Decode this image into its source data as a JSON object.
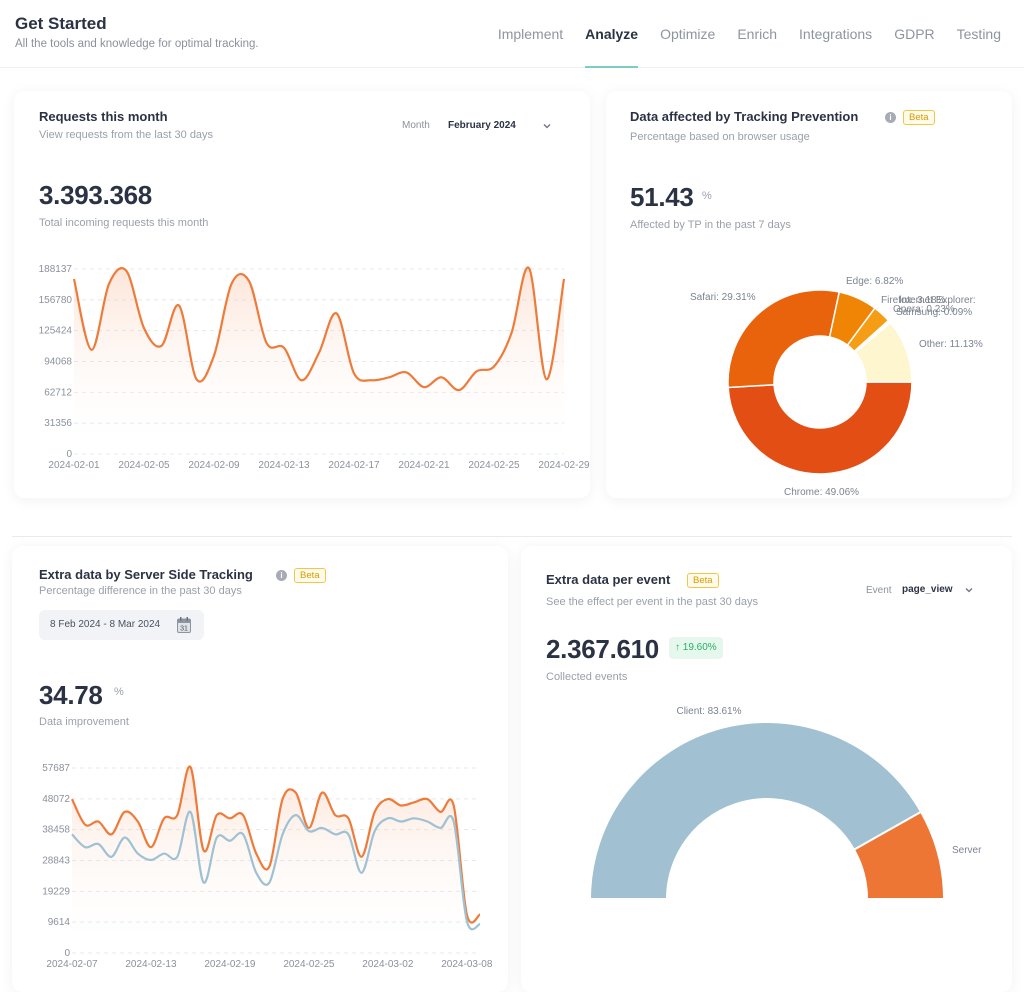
{
  "header": {
    "title": "Get Started",
    "subtitle": "All the tools and knowledge for optimal tracking.",
    "tabs": [
      {
        "label": "Implement",
        "active": false
      },
      {
        "label": "Analyze",
        "active": true
      },
      {
        "label": "Optimize",
        "active": false
      },
      {
        "label": "Enrich",
        "active": false
      },
      {
        "label": "Integrations",
        "active": false
      },
      {
        "label": "GDPR",
        "active": false
      },
      {
        "label": "Testing",
        "active": false
      }
    ]
  },
  "colors": {
    "accent_tab": "#7ccdc8",
    "orange_line": "#ee7b3a",
    "blue_line": "#9ec1d3",
    "chrome": "#e34e14",
    "safari": "#e8630c",
    "edge": "#f08405",
    "firefox": "#f59d15",
    "other": "#fdf6cf",
    "client": "#a1c1d2",
    "server": "#ee7634"
  },
  "requests": {
    "title": "Requests this month",
    "subtitle": "View requests from the last 30 days",
    "select_label": "Month",
    "select_value": "February 2024",
    "total": "3.393.368",
    "total_label": "Total incoming requests this month"
  },
  "tracking_prevention": {
    "title": "Data affected by Tracking Prevention",
    "beta": "Beta",
    "subtitle": "Percentage based on browser usage",
    "value": "51.43",
    "unit": "%",
    "value_label": "Affected by TP in the past 7 days"
  },
  "server_side": {
    "title": "Extra data by Server Side Tracking",
    "beta": "Beta",
    "subtitle": "Percentage difference in the past 30 days",
    "date_range": "8 Feb 2024 - 8 Mar 2024",
    "calendar_day": "31",
    "value": "34.78",
    "unit": "%",
    "value_label": "Data improvement"
  },
  "per_event": {
    "title": "Extra data per event",
    "beta": "Beta",
    "subtitle": "See the effect per event in the past 30 days",
    "select_label": "Event",
    "select_value": "page_view",
    "total": "2.367.610",
    "delta": "19.60%",
    "total_label": "Collected events"
  },
  "chart_data": [
    {
      "type": "area",
      "title": "",
      "yticks": [
        0,
        31356,
        62712,
        94068,
        125424,
        156780,
        188137
      ],
      "ylim": [
        0,
        188137
      ],
      "xticks": [
        "2024-02-01",
        "2024-02-05",
        "2024-02-09",
        "2024-02-13",
        "2024-02-17",
        "2024-02-21",
        "2024-02-25",
        "2024-02-29"
      ],
      "grid": true,
      "x": [
        "2024-02-01",
        "2024-02-02",
        "2024-02-03",
        "2024-02-04",
        "2024-02-05",
        "2024-02-06",
        "2024-02-07",
        "2024-02-08",
        "2024-02-09",
        "2024-02-10",
        "2024-02-11",
        "2024-02-12",
        "2024-02-13",
        "2024-02-14",
        "2024-02-15",
        "2024-02-16",
        "2024-02-17",
        "2024-02-18",
        "2024-02-19",
        "2024-02-20",
        "2024-02-21",
        "2024-02-22",
        "2024-02-23",
        "2024-02-24",
        "2024-02-25",
        "2024-02-26",
        "2024-02-27",
        "2024-02-28",
        "2024-02-29"
      ],
      "series": [
        {
          "values": [
            178000,
            106000,
            173000,
            186000,
            128000,
            110000,
            151000,
            76000,
            100000,
            173000,
            176000,
            113000,
            108000,
            75000,
            103000,
            143000,
            82000,
            75000,
            78000,
            83000,
            68000,
            78000,
            65000,
            84000,
            89000,
            123000,
            189000,
            76000,
            178000
          ]
        }
      ]
    },
    {
      "type": "pie",
      "title": "",
      "style": "donut",
      "slices": [
        {
          "label": "Chrome",
          "value": 49.06
        },
        {
          "label": "Safari",
          "value": 29.31
        },
        {
          "label": "Edge",
          "value": 6.82
        },
        {
          "label": "Firefox",
          "value": 3.18
        },
        {
          "label": "Internet Explorer",
          "value": 0.2
        },
        {
          "label": "Opera",
          "value": 0.23
        },
        {
          "label": "Samsung",
          "value": 0.09
        },
        {
          "label": "Other",
          "value": 11.13
        }
      ],
      "labels_shown": [
        "Chrome: 49.06%",
        "Safari: 29.31%",
        "Edge: 6.82%",
        "Firefox: 3.18%",
        "Internet Explorer: ",
        "Opera: 0.23%",
        "Samsung: 0.09%",
        "Other: 11.13%"
      ]
    },
    {
      "type": "area",
      "title": "",
      "yticks": [
        0,
        9614,
        19229,
        28843,
        38458,
        48072,
        57687
      ],
      "ylim": [
        0,
        57687
      ],
      "xticks": [
        "2024-02-07",
        "2024-02-13",
        "2024-02-19",
        "2024-02-25",
        "2024-03-02",
        "2024-03-08"
      ],
      "grid": true,
      "x": [
        "2024-02-07",
        "2024-02-08",
        "2024-02-09",
        "2024-02-10",
        "2024-02-11",
        "2024-02-12",
        "2024-02-13",
        "2024-02-14",
        "2024-02-15",
        "2024-02-16",
        "2024-02-17",
        "2024-02-18",
        "2024-02-19",
        "2024-02-20",
        "2024-02-21",
        "2024-02-22",
        "2024-02-23",
        "2024-02-24",
        "2024-02-25",
        "2024-02-26",
        "2024-02-27",
        "2024-02-28",
        "2024-02-29",
        "2024-03-01",
        "2024-03-02",
        "2024-03-03",
        "2024-03-04",
        "2024-03-05",
        "2024-03-06",
        "2024-03-07",
        "2024-03-08",
        "2024-03-09"
      ],
      "series": [
        {
          "name": "",
          "color": "#ee7b3a",
          "values": [
            48000,
            40000,
            41000,
            37000,
            44000,
            41000,
            33000,
            42000,
            43000,
            58000,
            32000,
            43000,
            42000,
            43000,
            31000,
            27000,
            48000,
            50000,
            39000,
            50000,
            43000,
            42000,
            30000,
            44000,
            48000,
            46000,
            47000,
            48000,
            44000,
            46000,
            12000,
            12000
          ]
        },
        {
          "name": "",
          "color": "#9ec1d3",
          "values": [
            37000,
            33000,
            34000,
            30000,
            36000,
            31000,
            29000,
            31000,
            30000,
            44000,
            22000,
            36000,
            35000,
            37000,
            25000,
            22000,
            37000,
            43000,
            38000,
            39000,
            37000,
            37000,
            25000,
            38000,
            42000,
            41000,
            42000,
            41000,
            39000,
            41000,
            10000,
            9000
          ]
        }
      ]
    },
    {
      "type": "pie",
      "title": "",
      "style": "half-donut",
      "slices": [
        {
          "label": "Client",
          "value": 83.61
        },
        {
          "label": "Server",
          "value": 16.39
        }
      ],
      "labels_shown": [
        "Client: 83.61%",
        "Server"
      ]
    }
  ]
}
